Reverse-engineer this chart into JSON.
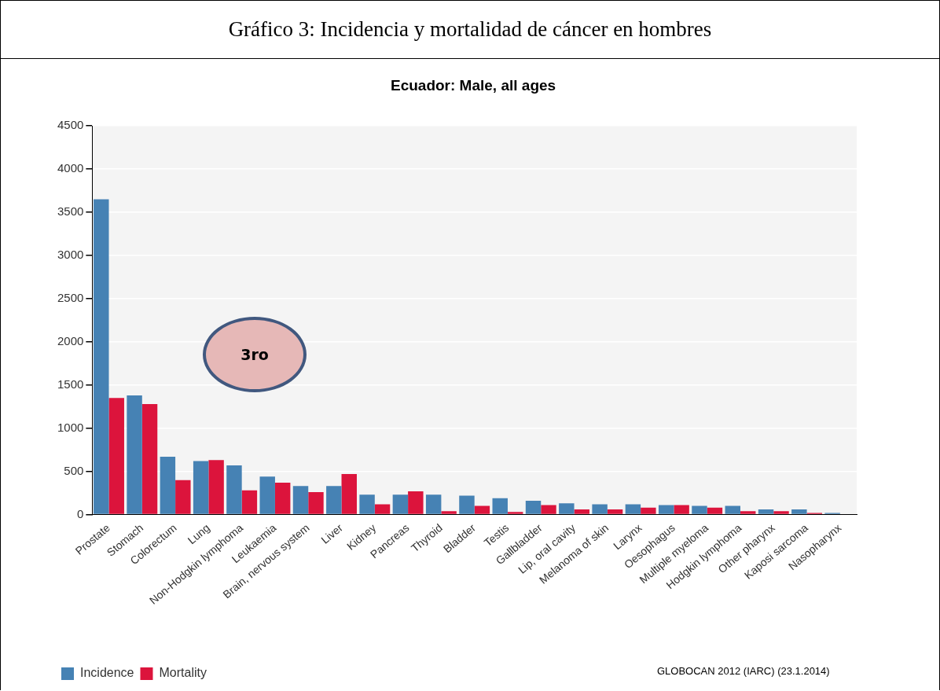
{
  "chart_data": {
    "type": "bar",
    "title": "Gráfico 3: Incidencia y mortalidad de cáncer en hombres",
    "subtitle": "Ecuador: Male, all ages",
    "categories": [
      "Prostate",
      "Stomach",
      "Colorectum",
      "Lung",
      "Non-Hodgkin lymphoma",
      "Leukaemia",
      "Brain, nervous system",
      "Liver",
      "Kidney",
      "Pancreas",
      "Thyroid",
      "Bladder",
      "Testis",
      "Gallbladder",
      "Lip, oral cavity",
      "Melanoma of skin",
      "Larynx",
      "Oesophagus",
      "Multiple myeloma",
      "Hodgkin lymphoma",
      "Other pharynx",
      "Kaposi sarcoma",
      "Nasopharynx"
    ],
    "series": [
      {
        "name": "Incidence",
        "color": "#4682b4",
        "values": [
          3650,
          1380,
          670,
          620,
          570,
          440,
          330,
          330,
          230,
          230,
          230,
          220,
          190,
          160,
          130,
          120,
          120,
          110,
          100,
          100,
          60,
          60,
          20
        ]
      },
      {
        "name": "Mortality",
        "color": "#dc143c",
        "values": [
          1350,
          1280,
          400,
          630,
          280,
          370,
          260,
          470,
          120,
          270,
          40,
          100,
          30,
          110,
          60,
          60,
          80,
          110,
          80,
          40,
          40,
          20,
          0
        ]
      }
    ],
    "ylim": [
      0,
      4500
    ],
    "yticks": [
      0,
      500,
      1000,
      1500,
      2000,
      2500,
      3000,
      3500,
      4000,
      4500
    ],
    "grid": "y",
    "legend": "bottom left",
    "annotations": [
      "3ro",
      "GLOBOCAN 2012 (IARC) (23.1.2014)"
    ]
  }
}
